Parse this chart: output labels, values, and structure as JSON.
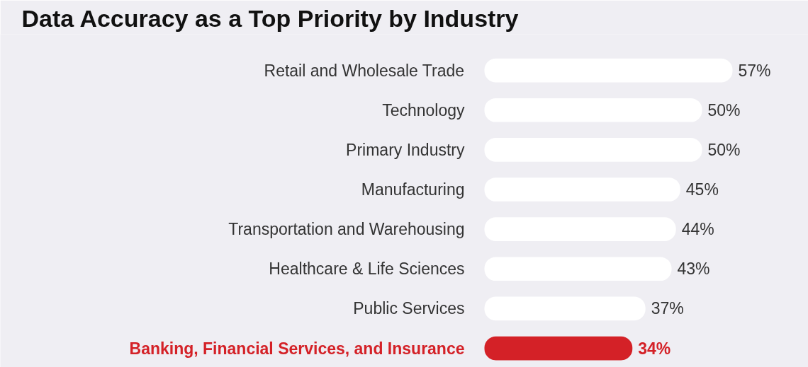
{
  "chart_data": {
    "type": "bar",
    "orientation": "horizontal",
    "title": "Data Accuracy as a Top Priority by Industry",
    "categories": [
      "Retail and Wholesale Trade",
      "Technology",
      "Primary Industry",
      "Manufacturing",
      "Transportation and Warehousing",
      "Healthcare & Life Sciences",
      "Public Services",
      "Banking, Financial Services, and Insurance"
    ],
    "values": [
      57,
      50,
      50,
      45,
      44,
      43,
      37,
      34
    ],
    "colors": [
      "#ffffff",
      "#ffffff",
      "#ffffff",
      "#ffffff",
      "#ffffff",
      "#ffffff",
      "#ffffff",
      "#d42127"
    ],
    "value_labels": [
      "57%",
      "50%",
      "50%",
      "45%",
      "44%",
      "43%",
      "37%",
      "34%"
    ],
    "grid": false
  }
}
